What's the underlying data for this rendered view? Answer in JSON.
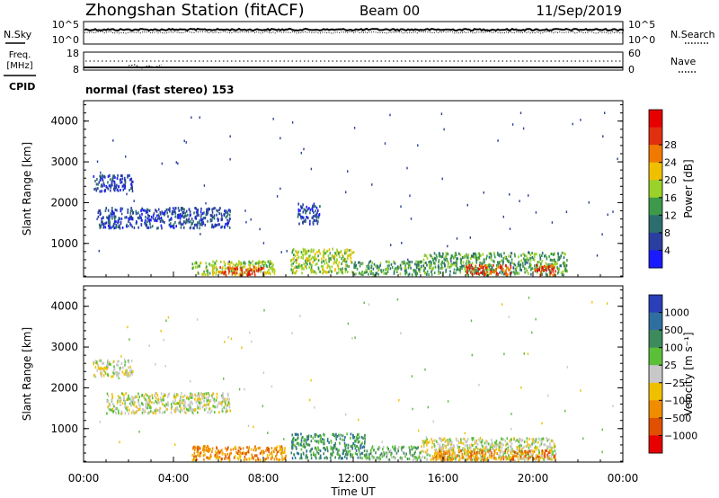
{
  "header": {
    "station_title": "Zhongshan Station (fitACF)",
    "beam_label": "Beam 00",
    "date": "11/Sep/2019"
  },
  "noise_panel": {
    "left_label": "N.Sky",
    "right_label": "N.Search",
    "left_ticks": [
      "10^5",
      "10^0"
    ],
    "right_ticks": [
      "10^5",
      "10^0"
    ]
  },
  "freq_panel": {
    "left_label_line1": "Freq.",
    "left_label_line2": "[MHz]",
    "left_ticks": [
      "18",
      "8"
    ],
    "right_label": "Nave",
    "right_ticks": [
      "60",
      "0"
    ],
    "cpid_label": "CPID",
    "cpid_text": "normal (fast stereo) 153"
  },
  "colors": {
    "power_scale": [
      "#1a1aff",
      "#2a3f9f",
      "#2c6e6e",
      "#3d9a4a",
      "#9ad22a",
      "#f0c000",
      "#f07a00",
      "#e03010",
      "#e60000"
    ],
    "velocity_scale": [
      "#2a3fb8",
      "#2e6fa0",
      "#3d8a5c",
      "#5bbf3a",
      "#c8c8c8",
      "#f0c000",
      "#f08c00",
      "#e05000",
      "#e60000"
    ]
  },
  "chart_data": [
    {
      "type": "heatmap",
      "title": "",
      "ylabel": "Slant Range [km]",
      "xlabel": "",
      "x_ticks": [
        "00:00",
        "04:00",
        "08:00",
        "12:00",
        "16:00",
        "20:00",
        "00:00"
      ],
      "y_ticks": [
        1000,
        2000,
        3000,
        4000
      ],
      "ylim": [
        180,
        4500
      ],
      "xlim_hours": [
        0,
        24
      ],
      "colorbar": {
        "label": "Power [dB]",
        "ticks": [
          "4",
          "8",
          "12",
          "16",
          "20",
          "24",
          "28"
        ]
      },
      "echo_regions": [
        {
          "t_start": 0.4,
          "t_end": 2.2,
          "r_low": 2300,
          "r_high": 2700,
          "level": 1
        },
        {
          "t_start": 0.6,
          "t_end": 6.5,
          "r_low": 1400,
          "r_high": 1900,
          "level": 1
        },
        {
          "t_start": 4.8,
          "t_end": 8.5,
          "r_low": 250,
          "r_high": 600,
          "level": 4
        },
        {
          "t_start": 6.0,
          "t_end": 8.0,
          "r_low": 250,
          "r_high": 450,
          "level": 7
        },
        {
          "t_start": 9.2,
          "t_end": 12.0,
          "r_low": 300,
          "r_high": 900,
          "level": 4
        },
        {
          "t_start": 9.5,
          "t_end": 10.5,
          "r_low": 1500,
          "r_high": 2000,
          "level": 1
        },
        {
          "t_start": 12.0,
          "t_end": 15.0,
          "r_low": 250,
          "r_high": 600,
          "level": 3
        },
        {
          "t_start": 15.0,
          "t_end": 21.5,
          "r_low": 250,
          "r_high": 800,
          "level": 3
        },
        {
          "t_start": 17.0,
          "t_end": 19.0,
          "r_low": 250,
          "r_high": 500,
          "level": 7
        },
        {
          "t_start": 20.0,
          "t_end": 21.0,
          "r_low": 250,
          "r_high": 500,
          "level": 7
        }
      ]
    },
    {
      "type": "heatmap",
      "title": "",
      "ylabel": "Slant Range [km]",
      "xlabel": "Time UT",
      "x_ticks": [
        "00:00",
        "04:00",
        "08:00",
        "12:00",
        "16:00",
        "20:00",
        "00:00"
      ],
      "y_ticks": [
        1000,
        2000,
        3000,
        4000
      ],
      "ylim": [
        180,
        4500
      ],
      "xlim_hours": [
        0,
        24
      ],
      "colorbar": {
        "label": "Velocity [m s⁻¹]",
        "ticks": [
          "1000",
          "500",
          "100",
          "25",
          "−25",
          "−100",
          "−500",
          "−1000"
        ]
      },
      "echo_regions": [
        {
          "t_start": 0.4,
          "t_end": 2.2,
          "r_low": 2300,
          "r_high": 2700,
          "level": 4
        },
        {
          "t_start": 1.0,
          "t_end": 6.5,
          "r_low": 1400,
          "r_high": 1900,
          "level": 4
        },
        {
          "t_start": 4.8,
          "t_end": 9.0,
          "r_low": 250,
          "r_high": 600,
          "level": 6
        },
        {
          "t_start": 9.2,
          "t_end": 12.5,
          "r_low": 300,
          "r_high": 900,
          "level": 2
        },
        {
          "t_start": 12.5,
          "t_end": 15.0,
          "r_low": 250,
          "r_high": 600,
          "level": 3
        },
        {
          "t_start": 15.0,
          "t_end": 21.0,
          "r_low": 250,
          "r_high": 800,
          "level": 4
        },
        {
          "t_start": 15.5,
          "t_end": 21.0,
          "r_low": 250,
          "r_high": 500,
          "level": 6
        }
      ]
    }
  ]
}
